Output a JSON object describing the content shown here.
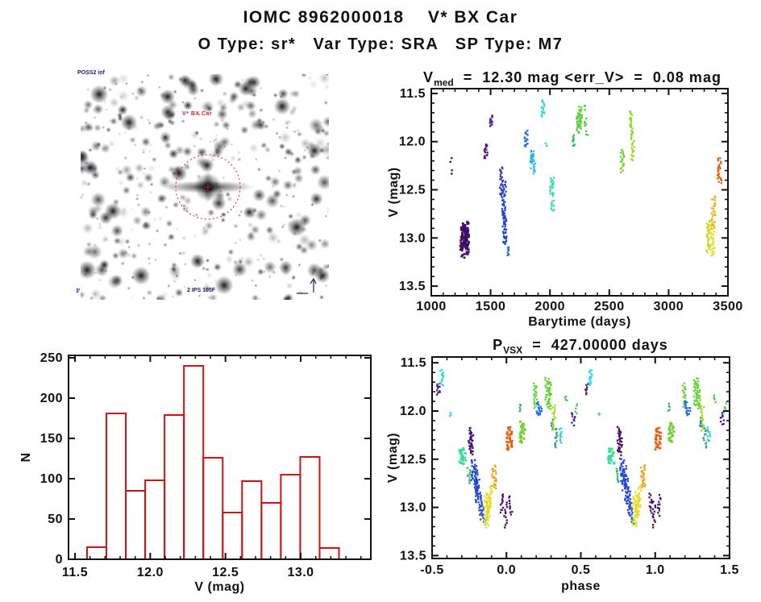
{
  "header": {
    "title": "IOMC 8962000018    V* BX Car",
    "subtitle": "O Type: sr*   Var Type: SRA   SP Type: M7"
  },
  "finder": {
    "target_label": "V* BX Car",
    "survey_label": "POSS2 inf",
    "scale_label": "3'",
    "footer_label": "2 IPS 105F",
    "circle_color": "#cc2222",
    "annotation_color": "#1a1a6e"
  },
  "chart_data": [
    {
      "id": "lightcurve",
      "type": "scatter",
      "title": {
        "prefix": "V",
        "sub": "med",
        "rest": "  =  12.30 mag <err_V>  =  0.08 mag"
      },
      "xlabel": "Barytime (days)",
      "ylabel": "V (mag)",
      "xlim": [
        1000,
        3500
      ],
      "xticks": [
        1000,
        1500,
        2000,
        2500,
        3000,
        3500
      ],
      "xtick_labels": [
        "1000",
        "1500",
        "2000",
        "2500",
        "3000",
        "3500"
      ],
      "x_minor": 100,
      "ylim": [
        11.45,
        13.6
      ],
      "yticks": [
        11.5,
        12.0,
        12.5,
        13.0,
        13.5
      ],
      "ytick_labels": [
        "11.5",
        "12.0",
        "12.5",
        "13.0",
        "13.5"
      ],
      "y_minor": 0.1,
      "y_axis_inverted_magnitudes": true,
      "clusters": [
        {
          "x": 1163,
          "v": [
            12.18,
            12.21
          ],
          "c": "#15154d",
          "w": 2,
          "n": 2
        },
        {
          "x": 1168,
          "v": [
            12.3,
            12.33
          ],
          "c": "#15154d",
          "w": 2,
          "n": 2
        },
        {
          "x": 1272,
          "v": [
            12.86,
            13.12
          ],
          "c": "#3d0b63",
          "w": 6,
          "n": 34
        },
        {
          "x": 1283,
          "v": [
            12.84,
            13.2
          ],
          "c": "#460f70",
          "w": 7,
          "n": 48
        },
        {
          "x": 1293,
          "v": [
            12.9,
            13.08
          ],
          "c": "#3d0b63",
          "w": 5,
          "n": 26
        },
        {
          "x": 1460,
          "v": [
            12.03,
            12.18
          ],
          "c": "#4b1787",
          "w": 3,
          "n": 16
        },
        {
          "x": 1505,
          "v": [
            11.73,
            11.84
          ],
          "c": "#54249e",
          "w": 3,
          "n": 14
        },
        {
          "x": 1592,
          "v": [
            12.27,
            12.56
          ],
          "c": "#3d2fa4",
          "w": 3,
          "n": 24
        },
        {
          "x": 1612,
          "v": [
            12.42,
            12.8
          ],
          "c": "#2547d6",
          "w": 4,
          "n": 40
        },
        {
          "x": 1618,
          "v": [
            12.72,
            13.06
          ],
          "c": "#2140cc",
          "w": 4,
          "n": 40
        },
        {
          "x": 1648,
          "v": [
            13.09,
            13.19
          ],
          "c": "#2f6fb0",
          "w": 2,
          "n": 9
        },
        {
          "x": 1800,
          "v": [
            11.88,
            12.05
          ],
          "c": "#1f6fe0",
          "w": 3,
          "n": 16
        },
        {
          "x": 1850,
          "v": [
            12.09,
            12.22
          ],
          "c": "#2fa8e0",
          "w": 3,
          "n": 14
        },
        {
          "x": 1858,
          "v": [
            12.16,
            12.33
          ],
          "c": "#35bfe0",
          "w": 4,
          "n": 18
        },
        {
          "x": 1942,
          "v": [
            11.57,
            11.74
          ],
          "c": "#35dada",
          "w": 3,
          "n": 18
        },
        {
          "x": 1968,
          "v": [
            12.01,
            12.05
          ],
          "c": "#35dada",
          "w": 2,
          "n": 3
        },
        {
          "x": 2016,
          "v": [
            12.38,
            12.57
          ],
          "c": "#3adf9f",
          "w": 4,
          "n": 22
        },
        {
          "x": 2023,
          "v": [
            12.62,
            12.72
          ],
          "c": "#3adf9f",
          "w": 3,
          "n": 10
        },
        {
          "x": 2200,
          "v": [
            11.93,
            12.05
          ],
          "c": "#2fba6e",
          "w": 2,
          "n": 9
        },
        {
          "x": 2237,
          "v": [
            11.7,
            11.9
          ],
          "c": "#55cc40",
          "w": 3,
          "n": 20
        },
        {
          "x": 2252,
          "v": [
            11.64,
            11.86
          ],
          "c": "#5fd43a",
          "w": 3,
          "n": 24
        },
        {
          "x": 2263,
          "v": [
            11.72,
            11.8
          ],
          "c": "#5fd43a",
          "w": 2,
          "n": 7
        },
        {
          "x": 2295,
          "v": [
            11.62,
            11.66
          ],
          "c": "#4cc84e",
          "w": 2,
          "n": 3
        },
        {
          "x": 2302,
          "v": [
            11.77,
            11.83
          ],
          "c": "#4cc84e",
          "w": 2,
          "n": 5
        },
        {
          "x": 2312,
          "v": [
            11.9,
            11.94
          ],
          "c": "#4cc84e",
          "w": 2,
          "n": 3
        },
        {
          "x": 2610,
          "v": [
            12.09,
            12.31
          ],
          "c": "#70d22e",
          "w": 3,
          "n": 20
        },
        {
          "x": 2686,
          "v": [
            11.68,
            11.97
          ],
          "c": "#8dd828",
          "w": 3,
          "n": 24
        },
        {
          "x": 2700,
          "v": [
            12.0,
            12.2
          ],
          "c": "#9bda26",
          "w": 3,
          "n": 16
        },
        {
          "x": 3333,
          "v": [
            12.82,
            13.14
          ],
          "c": "#b9dc1f",
          "w": 3,
          "n": 26
        },
        {
          "x": 3370,
          "v": [
            12.85,
            13.18
          ],
          "c": "#e8e02e",
          "w": 4,
          "n": 36
        },
        {
          "x": 3377,
          "v": [
            12.56,
            12.9
          ],
          "c": "#edb41c",
          "w": 4,
          "n": 30
        },
        {
          "x": 3428,
          "v": [
            12.17,
            12.43
          ],
          "c": "#e26312",
          "w": 4,
          "n": 26
        }
      ]
    },
    {
      "id": "histogram",
      "type": "bar",
      "xlabel": "V (mag)",
      "ylabel": "N",
      "color": "#cc1414",
      "bin_start": 11.58,
      "bin_width": 0.1288,
      "values": [
        15,
        181,
        85,
        98,
        179,
        240,
        126,
        58,
        97,
        70,
        105,
        127,
        14
      ],
      "xlim": [
        11.457,
        13.466
      ],
      "xticks": [
        11.5,
        12.0,
        12.5,
        13.0
      ],
      "xtick_labels": [
        "11.5",
        "12.0",
        "12.5",
        "13.0"
      ],
      "x_minor": 0.1,
      "ylim": [
        0,
        253
      ],
      "yticks": [
        0,
        50,
        100,
        150,
        200,
        250
      ],
      "ytick_labels": [
        "0",
        "50",
        "100",
        "150",
        "200",
        "250"
      ],
      "y_minor": 10
    },
    {
      "id": "phase",
      "type": "scatter",
      "title": {
        "prefix": "P",
        "sub": "VSX",
        "rest": "  =  427.00000 days"
      },
      "xlabel": "phase",
      "ylabel": "V (mag)",
      "xlim": [
        -0.5,
        1.5
      ],
      "xticks": [
        -0.5,
        0.0,
        0.5,
        1.0,
        1.5
      ],
      "xtick_labels": [
        "-0.5",
        "0.0",
        "0.5",
        "1.0",
        "1.5"
      ],
      "x_minor": 0.1,
      "ylim": [
        11.44,
        13.53
      ],
      "yticks": [
        11.5,
        12.0,
        12.5,
        13.0,
        13.5
      ],
      "ytick_labels": [
        "11.5",
        "12.0",
        "12.5",
        "13.0",
        "13.5"
      ],
      "y_minor": 0.1,
      "y_axis_inverted_magnitudes": true,
      "period_days": 427.0,
      "repeat_offset": 1.0,
      "clusters": [
        {
          "x": -0.458,
          "v": [
            11.71,
            11.83
          ],
          "c": "#4b1a8e",
          "w": 3,
          "n": 11
        },
        {
          "x": -0.435,
          "v": [
            11.57,
            11.73
          ],
          "c": "#35dada",
          "w": 3,
          "n": 15
        },
        {
          "x": -0.376,
          "v": [
            12.02,
            12.05
          ],
          "c": "#35dada",
          "w": 2,
          "n": 3
        },
        {
          "x": -0.295,
          "v": [
            12.39,
            12.55
          ],
          "c": "#3adf9f",
          "w": 6,
          "n": 28
        },
        {
          "x": -0.252,
          "v": [
            12.6,
            12.74
          ],
          "c": "#2fba6e",
          "w": 3,
          "n": 10
        },
        {
          "x": -0.243,
          "v": [
            12.17,
            12.42
          ],
          "c": "#460f70",
          "w": 3,
          "n": 20
        },
        {
          "x": -0.232,
          "v": [
            12.22,
            12.45
          ],
          "c": "#460f70",
          "w": 3,
          "n": 16
        },
        {
          "x": -0.222,
          "v": [
            12.5,
            12.72
          ],
          "c": "#2547d6",
          "w": 4,
          "n": 24
        },
        {
          "x": -0.207,
          "v": [
            12.58,
            12.82
          ],
          "c": "#2547d6",
          "w": 4,
          "n": 26
        },
        {
          "x": -0.192,
          "v": [
            12.7,
            12.95
          ],
          "c": "#2140cc",
          "w": 4,
          "n": 24
        },
        {
          "x": -0.178,
          "v": [
            12.84,
            13.08
          ],
          "c": "#2547d6",
          "w": 3,
          "n": 18
        },
        {
          "x": -0.163,
          "v": [
            12.95,
            13.14
          ],
          "c": "#3458b8",
          "w": 3,
          "n": 14
        },
        {
          "x": -0.148,
          "v": [
            13.12,
            13.18
          ],
          "c": "#2f8fae",
          "w": 2,
          "n": 3
        },
        {
          "x": -0.135,
          "v": [
            12.88,
            13.2
          ],
          "c": "#e8e02e",
          "w": 4,
          "n": 34
        },
        {
          "x": -0.12,
          "v": [
            12.85,
            13.1
          ],
          "c": "#ecd426",
          "w": 4,
          "n": 26
        },
        {
          "x": -0.105,
          "v": [
            12.78,
            13.0
          ],
          "c": "#e8e02e",
          "w": 3,
          "n": 18
        },
        {
          "x": -0.082,
          "v": [
            12.57,
            12.8
          ],
          "c": "#eda41a",
          "w": 4,
          "n": 26
        },
        {
          "x": -0.03,
          "v": [
            12.86,
            13.05
          ],
          "c": "#460f70",
          "w": 3,
          "n": 12
        },
        {
          "x": -0.005,
          "v": [
            12.95,
            13.2
          ],
          "c": "#3d0b63",
          "w": 3,
          "n": 12
        },
        {
          "x": 0.028,
          "v": [
            12.88,
            13.08
          ],
          "c": "#460f70",
          "w": 3,
          "n": 11
        },
        {
          "x": 0.02,
          "v": [
            12.17,
            12.4
          ],
          "c": "#e26312",
          "w": 5,
          "n": 30
        },
        {
          "x": 0.09,
          "v": [
            11.93,
            12.0
          ],
          "c": "#2fba6e",
          "w": 2,
          "n": 5
        },
        {
          "x": 0.108,
          "v": [
            12.12,
            12.33
          ],
          "c": "#70d22e",
          "w": 5,
          "n": 26
        },
        {
          "x": 0.195,
          "v": [
            11.72,
            11.96
          ],
          "c": "#5fd43a",
          "w": 3,
          "n": 20
        },
        {
          "x": 0.212,
          "v": [
            11.9,
            12.05
          ],
          "c": "#1f6fe0",
          "w": 3,
          "n": 14
        },
        {
          "x": 0.23,
          "v": [
            11.96,
            12.04
          ],
          "c": "#1f6fe0",
          "w": 2,
          "n": 6
        },
        {
          "x": 0.275,
          "v": [
            11.66,
            11.95
          ],
          "c": "#5fd43a",
          "w": 4,
          "n": 28
        },
        {
          "x": 0.292,
          "v": [
            11.7,
            11.98
          ],
          "c": "#70d22e",
          "w": 3,
          "n": 22
        },
        {
          "x": 0.307,
          "v": [
            12.08,
            12.17
          ],
          "c": "#2470d8",
          "w": 2,
          "n": 6
        },
        {
          "x": 0.318,
          "v": [
            11.95,
            12.2
          ],
          "c": "#a6dc22",
          "w": 3,
          "n": 18
        },
        {
          "x": 0.335,
          "v": [
            12.18,
            12.38
          ],
          "c": "#2f9f86",
          "w": 3,
          "n": 12
        },
        {
          "x": 0.36,
          "v": [
            12.18,
            12.32
          ],
          "c": "#35c8d8",
          "w": 3,
          "n": 10
        },
        {
          "x": 0.4,
          "v": [
            11.84,
            11.9
          ],
          "c": "#4cc84e",
          "w": 2,
          "n": 4
        },
        {
          "x": 0.45,
          "v": [
            12.02,
            12.14
          ],
          "c": "#4b1a8e",
          "w": 3,
          "n": 9
        },
        {
          "x": 0.47,
          "v": [
            11.93,
            12.02
          ],
          "c": "#4cc84e",
          "w": 2,
          "n": 5
        }
      ]
    }
  ]
}
